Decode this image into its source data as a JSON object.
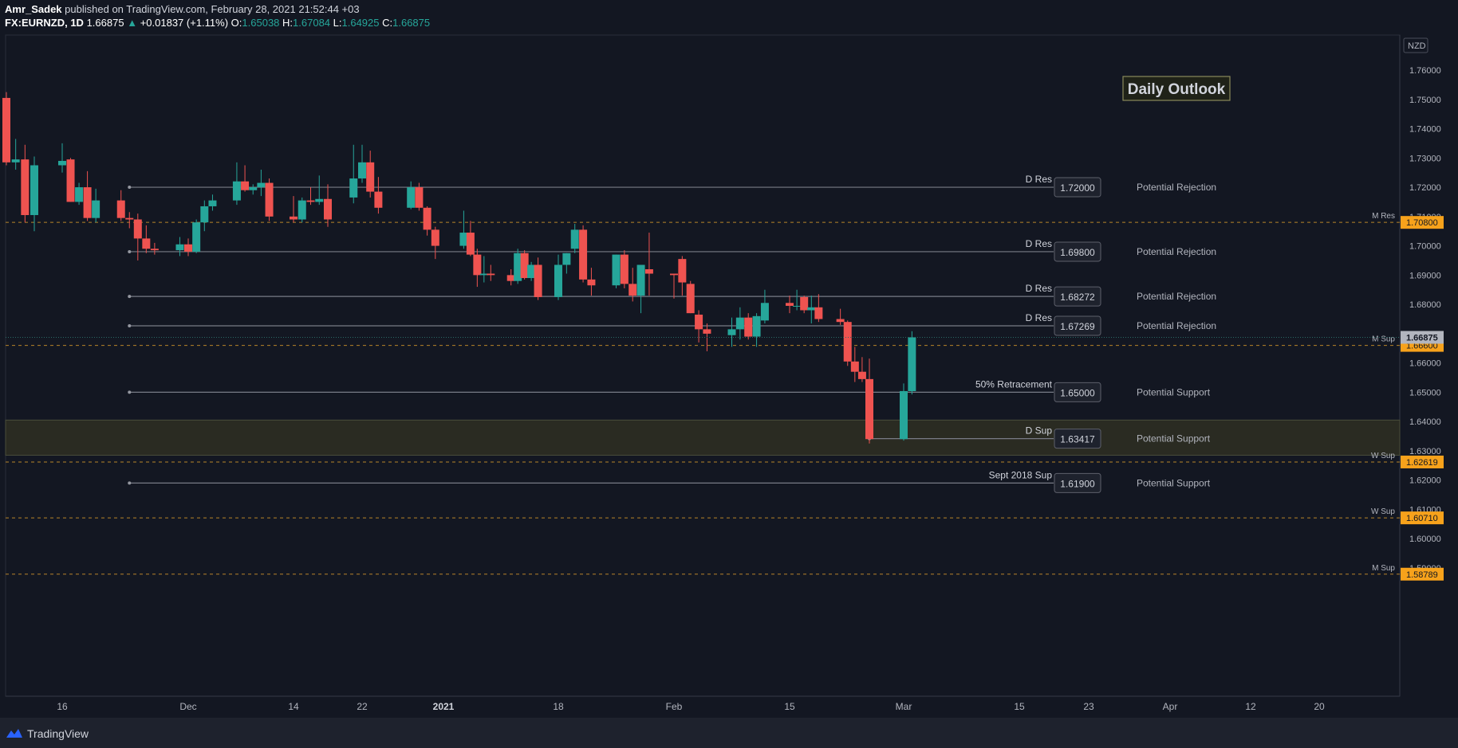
{
  "header": {
    "author": "Amr_Sadek",
    "published_text": "published on TradingView.com, February 28, 2021 21:52:44 +03",
    "symbol": "FX:EURNZD, 1D",
    "last": "1.66875",
    "change": "+0.01837 (+1.11%)",
    "o_label": "O:",
    "o": "1.65038",
    "h_label": "H:",
    "h": "1.67084",
    "l_label": "L:",
    "l": "1.64925",
    "c_label": "C:",
    "c": "1.66875"
  },
  "footer": {
    "brand": "TradingView"
  },
  "chart_data": {
    "type": "candlestick",
    "title": "Daily Outlook",
    "currency_label": "NZD",
    "ylim": [
      1.583,
      1.762
    ],
    "y_ticks": [
      1.59,
      1.6,
      1.61,
      1.62,
      1.63,
      1.64,
      1.65,
      1.66,
      1.67,
      1.68,
      1.69,
      1.7,
      1.71,
      1.72,
      1.73,
      1.74,
      1.75,
      1.76
    ],
    "y_tick_labels": [
      "1.59000",
      "1.60000",
      "1.61000",
      "1.62000",
      "1.63000",
      "1.64000",
      "1.65000",
      "1.66000",
      "1.67000",
      "1.68000",
      "1.69000",
      "1.70000",
      "1.71000",
      "1.72000",
      "1.73000",
      "1.74000",
      "1.75000",
      "1.76000"
    ],
    "x_ticks": [
      {
        "label": "16",
        "date": "2020-11-16"
      },
      {
        "label": "Dec",
        "date": "2020-12-01"
      },
      {
        "label": "14",
        "date": "2020-12-14"
      },
      {
        "label": "22",
        "date": "2020-12-22"
      },
      {
        "label": "2021",
        "date": "2021-01-01",
        "bold": true
      },
      {
        "label": "18",
        "date": "2021-01-18"
      },
      {
        "label": "Feb",
        "date": "2021-02-01"
      },
      {
        "label": "15",
        "date": "2021-02-15"
      },
      {
        "label": "Mar",
        "date": "2021-03-01"
      },
      {
        "label": "15",
        "date": "2021-03-15"
      },
      {
        "label": "23",
        "date": "2021-03-23"
      },
      {
        "label": "Apr",
        "date": "2021-04-01"
      },
      {
        "label": "12",
        "date": "2021-04-12"
      },
      {
        "label": "20",
        "date": "2021-04-20"
      }
    ],
    "candles": [
      {
        "date": "2020-11-10",
        "o": 1.7505,
        "h": 1.7525,
        "l": 1.7275,
        "c": 1.7285
      },
      {
        "date": "2020-11-11",
        "o": 1.7285,
        "h": 1.7365,
        "l": 1.726,
        "c": 1.7295
      },
      {
        "date": "2020-11-12",
        "o": 1.7295,
        "h": 1.7345,
        "l": 1.708,
        "c": 1.7105
      },
      {
        "date": "2020-11-13",
        "o": 1.7105,
        "h": 1.7305,
        "l": 1.705,
        "c": 1.7275
      },
      {
        "date": "2020-11-16",
        "o": 1.7275,
        "h": 1.735,
        "l": 1.725,
        "c": 1.729
      },
      {
        "date": "2020-11-17",
        "o": 1.7295,
        "h": 1.73,
        "l": 1.715,
        "c": 1.715
      },
      {
        "date": "2020-11-18",
        "o": 1.715,
        "h": 1.7215,
        "l": 1.714,
        "c": 1.72
      },
      {
        "date": "2020-11-19",
        "o": 1.72,
        "h": 1.7255,
        "l": 1.7085,
        "c": 1.7095
      },
      {
        "date": "2020-11-20",
        "o": 1.7095,
        "h": 1.7195,
        "l": 1.708,
        "c": 1.7155
      },
      {
        "date": "2020-11-23",
        "o": 1.7155,
        "h": 1.719,
        "l": 1.7085,
        "c": 1.7095
      },
      {
        "date": "2020-11-24",
        "o": 1.7095,
        "h": 1.7115,
        "l": 1.706,
        "c": 1.709
      },
      {
        "date": "2020-11-25",
        "o": 1.709,
        "h": 1.711,
        "l": 1.695,
        "c": 1.7025
      },
      {
        "date": "2020-11-26",
        "o": 1.7025,
        "h": 1.707,
        "l": 1.6975,
        "c": 1.699
      },
      {
        "date": "2020-11-27",
        "o": 1.699,
        "h": 1.701,
        "l": 1.697,
        "c": 1.6985
      },
      {
        "date": "2020-11-30",
        "o": 1.6985,
        "h": 1.703,
        "l": 1.6965,
        "c": 1.7005
      },
      {
        "date": "2020-12-01",
        "o": 1.7005,
        "h": 1.7025,
        "l": 1.6965,
        "c": 1.698
      },
      {
        "date": "2020-12-02",
        "o": 1.698,
        "h": 1.709,
        "l": 1.6975,
        "c": 1.708
      },
      {
        "date": "2020-12-03",
        "o": 1.708,
        "h": 1.7155,
        "l": 1.705,
        "c": 1.7135
      },
      {
        "date": "2020-12-04",
        "o": 1.7135,
        "h": 1.7175,
        "l": 1.712,
        "c": 1.7155
      },
      {
        "date": "2020-12-07",
        "o": 1.7155,
        "h": 1.7285,
        "l": 1.714,
        "c": 1.722
      },
      {
        "date": "2020-12-08",
        "o": 1.722,
        "h": 1.7275,
        "l": 1.7185,
        "c": 1.719
      },
      {
        "date": "2020-12-09",
        "o": 1.719,
        "h": 1.721,
        "l": 1.7175,
        "c": 1.72
      },
      {
        "date": "2020-12-10",
        "o": 1.72,
        "h": 1.726,
        "l": 1.717,
        "c": 1.7215
      },
      {
        "date": "2020-12-11",
        "o": 1.7215,
        "h": 1.723,
        "l": 1.7085,
        "c": 1.71
      },
      {
        "date": "2020-12-14",
        "o": 1.71,
        "h": 1.717,
        "l": 1.708,
        "c": 1.709
      },
      {
        "date": "2020-12-15",
        "o": 1.709,
        "h": 1.7165,
        "l": 1.708,
        "c": 1.7155
      },
      {
        "date": "2020-12-16",
        "o": 1.7155,
        "h": 1.72,
        "l": 1.714,
        "c": 1.715
      },
      {
        "date": "2020-12-17",
        "o": 1.715,
        "h": 1.724,
        "l": 1.714,
        "c": 1.716
      },
      {
        "date": "2020-12-18",
        "o": 1.716,
        "h": 1.721,
        "l": 1.7065,
        "c": 1.709
      },
      {
        "date": "2020-12-21",
        "o": 1.7165,
        "h": 1.7345,
        "l": 1.7145,
        "c": 1.723
      },
      {
        "date": "2020-12-22",
        "o": 1.723,
        "h": 1.7345,
        "l": 1.7215,
        "c": 1.7285
      },
      {
        "date": "2020-12-23",
        "o": 1.7285,
        "h": 1.7325,
        "l": 1.7165,
        "c": 1.7185
      },
      {
        "date": "2020-12-24",
        "o": 1.7185,
        "h": 1.7235,
        "l": 1.711,
        "c": 1.713
      },
      {
        "date": "2020-12-28",
        "o": 1.713,
        "h": 1.722,
        "l": 1.7125,
        "c": 1.72
      },
      {
        "date": "2020-12-29",
        "o": 1.72,
        "h": 1.7215,
        "l": 1.712,
        "c": 1.713
      },
      {
        "date": "2020-12-30",
        "o": 1.713,
        "h": 1.7135,
        "l": 1.7035,
        "c": 1.7055
      },
      {
        "date": "2020-12-31",
        "o": 1.7055,
        "h": 1.7065,
        "l": 1.6955,
        "c": 1.7
      },
      {
        "date": "2021-01-04",
        "o": 1.7,
        "h": 1.712,
        "l": 1.699,
        "c": 1.7045
      },
      {
        "date": "2021-01-05",
        "o": 1.7045,
        "h": 1.7085,
        "l": 1.6965,
        "c": 1.697
      },
      {
        "date": "2021-01-06",
        "o": 1.697,
        "h": 1.699,
        "l": 1.686,
        "c": 1.69
      },
      {
        "date": "2021-01-07",
        "o": 1.69,
        "h": 1.6965,
        "l": 1.6875,
        "c": 1.6905
      },
      {
        "date": "2021-01-08",
        "o": 1.6905,
        "h": 1.6935,
        "l": 1.688,
        "c": 1.69
      },
      {
        "date": "2021-01-11",
        "o": 1.69,
        "h": 1.692,
        "l": 1.6865,
        "c": 1.688
      },
      {
        "date": "2021-01-12",
        "o": 1.688,
        "h": 1.699,
        "l": 1.687,
        "c": 1.6975
      },
      {
        "date": "2021-01-13",
        "o": 1.6975,
        "h": 1.6985,
        "l": 1.6885,
        "c": 1.689
      },
      {
        "date": "2021-01-14",
        "o": 1.689,
        "h": 1.6945,
        "l": 1.688,
        "c": 1.6935
      },
      {
        "date": "2021-01-15",
        "o": 1.6935,
        "h": 1.696,
        "l": 1.6815,
        "c": 1.6825
      },
      {
        "date": "2021-01-18",
        "o": 1.6825,
        "h": 1.697,
        "l": 1.6815,
        "c": 1.6935
      },
      {
        "date": "2021-01-19",
        "o": 1.6935,
        "h": 1.6975,
        "l": 1.6905,
        "c": 1.6975
      },
      {
        "date": "2021-01-20",
        "o": 1.699,
        "h": 1.7075,
        "l": 1.6975,
        "c": 1.7055
      },
      {
        "date": "2021-01-21",
        "o": 1.7055,
        "h": 1.707,
        "l": 1.6875,
        "c": 1.6885
      },
      {
        "date": "2021-01-22",
        "o": 1.6885,
        "h": 1.6925,
        "l": 1.683,
        "c": 1.6865
      },
      {
        "date": "2021-01-25",
        "o": 1.6865,
        "h": 1.697,
        "l": 1.6855,
        "c": 1.697
      },
      {
        "date": "2021-01-26",
        "o": 1.697,
        "h": 1.6985,
        "l": 1.6855,
        "c": 1.687
      },
      {
        "date": "2021-01-27",
        "o": 1.687,
        "h": 1.6925,
        "l": 1.681,
        "c": 1.683
      },
      {
        "date": "2021-01-28",
        "o": 1.683,
        "h": 1.6935,
        "l": 1.677,
        "c": 1.6935
      },
      {
        "date": "2021-01-29",
        "o": 1.692,
        "h": 1.7045,
        "l": 1.683,
        "c": 1.6905
      },
      {
        "date": "2021-02-01",
        "o": 1.6905,
        "h": 1.6905,
        "l": 1.682,
        "c": 1.69
      },
      {
        "date": "2021-02-02",
        "o": 1.6955,
        "h": 1.6965,
        "l": 1.683,
        "c": 1.6875
      },
      {
        "date": "2021-02-03",
        "o": 1.687,
        "h": 1.688,
        "l": 1.677,
        "c": 1.677
      },
      {
        "date": "2021-02-04",
        "o": 1.6765,
        "h": 1.678,
        "l": 1.667,
        "c": 1.6715
      },
      {
        "date": "2021-02-05",
        "o": 1.6715,
        "h": 1.6735,
        "l": 1.664,
        "c": 1.67
      },
      {
        "date": "2021-02-08",
        "o": 1.6695,
        "h": 1.6755,
        "l": 1.6655,
        "c": 1.6715
      },
      {
        "date": "2021-02-09",
        "o": 1.6715,
        "h": 1.679,
        "l": 1.668,
        "c": 1.6755
      },
      {
        "date": "2021-02-10",
        "o": 1.6755,
        "h": 1.677,
        "l": 1.668,
        "c": 1.669
      },
      {
        "date": "2021-02-11",
        "o": 1.669,
        "h": 1.677,
        "l": 1.6655,
        "c": 1.676
      },
      {
        "date": "2021-02-12",
        "o": 1.6745,
        "h": 1.685,
        "l": 1.6735,
        "c": 1.6805
      },
      {
        "date": "2021-02-15",
        "o": 1.6805,
        "h": 1.683,
        "l": 1.677,
        "c": 1.6795
      },
      {
        "date": "2021-02-16",
        "o": 1.6795,
        "h": 1.685,
        "l": 1.678,
        "c": 1.6795
      },
      {
        "date": "2021-02-17",
        "o": 1.6825,
        "h": 1.683,
        "l": 1.677,
        "c": 1.678
      },
      {
        "date": "2021-02-18",
        "o": 1.678,
        "h": 1.683,
        "l": 1.6735,
        "c": 1.679
      },
      {
        "date": "2021-02-19",
        "o": 1.679,
        "h": 1.6835,
        "l": 1.674,
        "c": 1.675
      },
      {
        "date": "2021-02-22",
        "o": 1.675,
        "h": 1.6785,
        "l": 1.673,
        "c": 1.674
      },
      {
        "date": "2021-02-23",
        "o": 1.674,
        "h": 1.6745,
        "l": 1.659,
        "c": 1.6605
      },
      {
        "date": "2021-02-24",
        "o": 1.6605,
        "h": 1.6655,
        "l": 1.6535,
        "c": 1.657
      },
      {
        "date": "2021-02-25",
        "o": 1.657,
        "h": 1.662,
        "l": 1.6535,
        "c": 1.6545
      },
      {
        "date": "2021-02-26",
        "o": 1.6545,
        "h": 1.6615,
        "l": 1.6325,
        "c": 1.634
      },
      {
        "date": "2021-03-01",
        "o": 1.634,
        "h": 1.653,
        "l": 1.6335,
        "c": 1.6504
      },
      {
        "date": "2021-03-02",
        "o": 1.65038,
        "h": 1.67084,
        "l": 1.64925,
        "c": 1.66875
      }
    ],
    "levels": [
      {
        "name": "D Res",
        "price": 1.72,
        "value_label": "1.72000",
        "note": "Potential Rejection",
        "start": "2020-11-24"
      },
      {
        "name": "D Res",
        "price": 1.698,
        "value_label": "1.69800",
        "note": "Potential Rejection",
        "start": "2020-11-24"
      },
      {
        "name": "D Res",
        "price": 1.68272,
        "value_label": "1.68272",
        "note": "Potential Rejection",
        "start": "2020-11-24"
      },
      {
        "name": "D Res",
        "price": 1.67269,
        "value_label": "1.67269",
        "note": "Potential Rejection",
        "start": "2020-11-24"
      },
      {
        "name": "50% Retracement",
        "price": 1.65,
        "value_label": "1.65000",
        "note": "Potential Support",
        "start": "2020-11-24"
      },
      {
        "name": "D Sup",
        "price": 1.63417,
        "value_label": "1.63417",
        "note": "Potential Support",
        "start": "2021-02-26"
      },
      {
        "name": "Sept 2018 Sup",
        "price": 1.619,
        "value_label": "1.61900",
        "note": "Potential Support",
        "start": "2020-11-24"
      }
    ],
    "dashed_levels": [
      {
        "name": "M Res",
        "price": 1.708,
        "label": "1.70800"
      },
      {
        "name": "M Sup",
        "price": 1.666,
        "label": "1.66600"
      },
      {
        "name": "W Sup",
        "price": 1.62619,
        "label": "1.62619"
      },
      {
        "name": "W Sup",
        "price": 1.6071,
        "label": "1.60710"
      },
      {
        "name": "M Sup",
        "price": 1.58789,
        "label": "1.58789"
      }
    ],
    "last_price_label": "1.66875",
    "last_price": 1.66875,
    "zone": {
      "top": 1.6405,
      "bottom": 1.6285
    },
    "colors": {
      "up": "#26a69a",
      "down": "#ef5350",
      "bg": "#131722",
      "level": "#787b86",
      "dashed": "#f7a21b",
      "zone": "#2a2b22"
    }
  }
}
